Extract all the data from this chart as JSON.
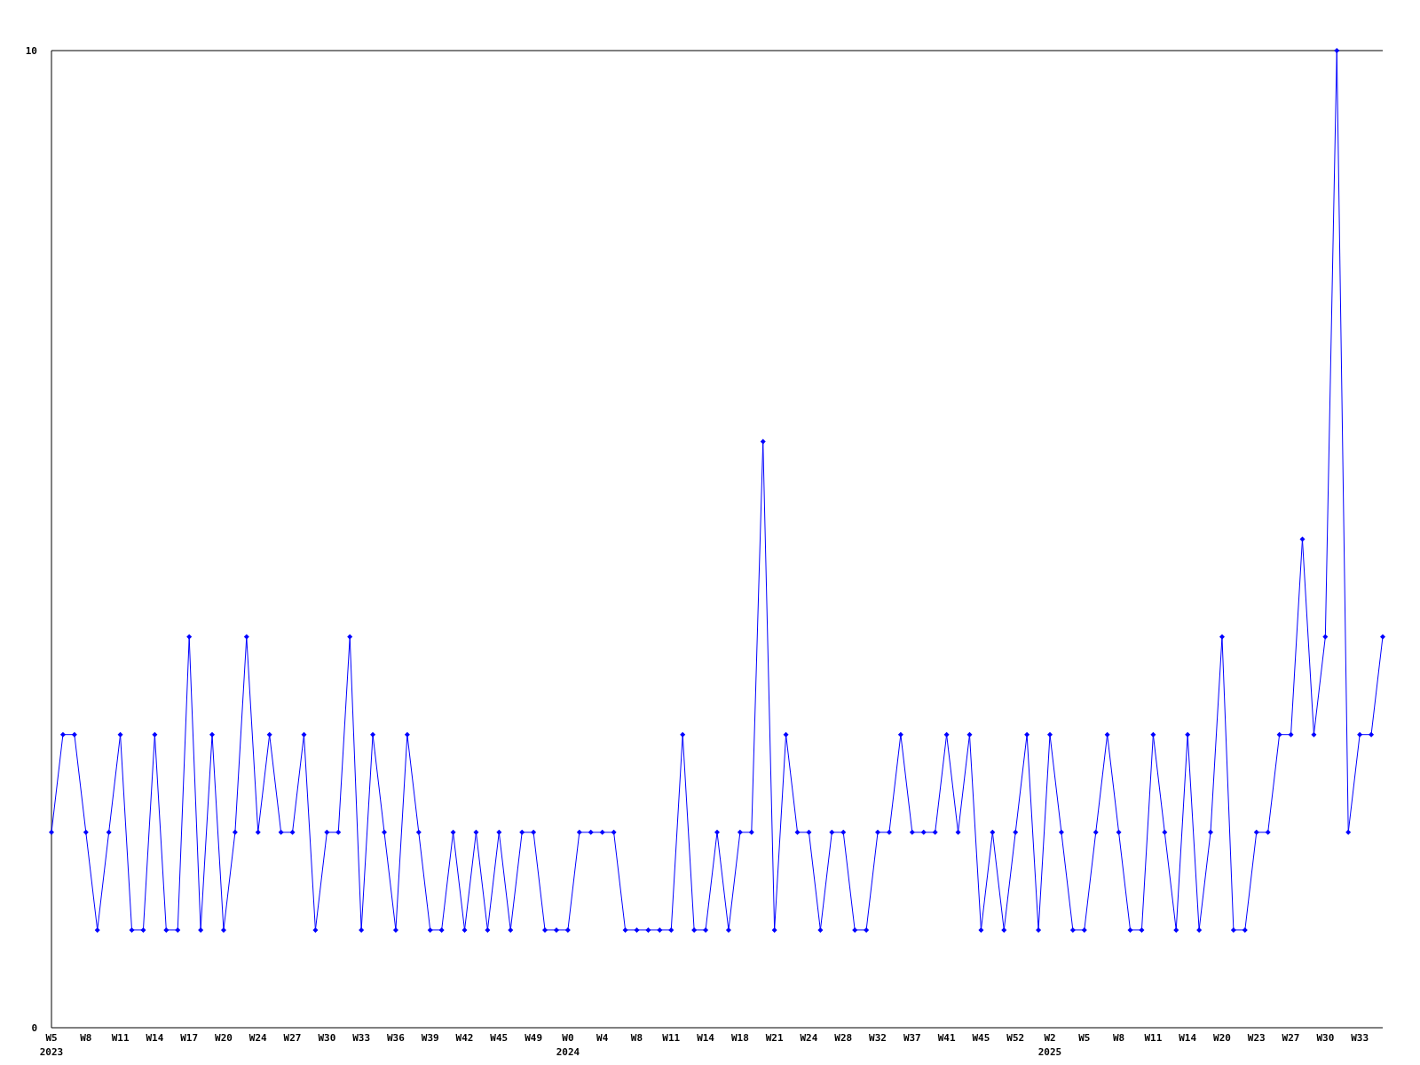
{
  "chart_data": {
    "type": "line",
    "categories": [
      "W5\n2023",
      null,
      null,
      "W8",
      null,
      null,
      "W11",
      null,
      null,
      "W14",
      null,
      null,
      "W17",
      null,
      null,
      "W20",
      null,
      null,
      "W24",
      null,
      null,
      "W27",
      null,
      null,
      "W30",
      null,
      null,
      "W33",
      null,
      null,
      "W36",
      null,
      null,
      "W39",
      null,
      null,
      "W42",
      null,
      null,
      "W45",
      null,
      null,
      "W49",
      null,
      null,
      "W0\n2024",
      null,
      null,
      "W4",
      null,
      null,
      "W8",
      null,
      null,
      "W11",
      null,
      null,
      "W14",
      null,
      null,
      "W18",
      null,
      null,
      "W21",
      null,
      null,
      "W24",
      null,
      null,
      "W28",
      null,
      null,
      "W32",
      null,
      null,
      "W37",
      null,
      null,
      "W41",
      null,
      null,
      "W45",
      null,
      null,
      "W52",
      null,
      null,
      "W2\n2025",
      null,
      null,
      "W5",
      null,
      null,
      "W8",
      null,
      null,
      "W11",
      null,
      null,
      "W14",
      null,
      null,
      "W20",
      null,
      null,
      "W23",
      null,
      null,
      "W27",
      null,
      null,
      "W30",
      null,
      null,
      "W33",
      null,
      null
    ],
    "series": [
      {
        "color": "#0000ff",
        "values": [
          2,
          3,
          3,
          2,
          1,
          2,
          3,
          1,
          1,
          3,
          1,
          1,
          4,
          1,
          3,
          1,
          2,
          4,
          2,
          3,
          2,
          2,
          3,
          1,
          2,
          2,
          4,
          1,
          3,
          2,
          1,
          3,
          2,
          1,
          1,
          2,
          1,
          2,
          1,
          2,
          1,
          2,
          2,
          1,
          1,
          1,
          2,
          2,
          2,
          2,
          1,
          1,
          1,
          1,
          1,
          3,
          1,
          1,
          2,
          1,
          2,
          2,
          6,
          1,
          3,
          2,
          2,
          1,
          2,
          2,
          1,
          1,
          2,
          2,
          3,
          2,
          2,
          2,
          3,
          2,
          3,
          1,
          2,
          1,
          2,
          3,
          1,
          3,
          2,
          1,
          1,
          2,
          3,
          2,
          1,
          1,
          3,
          2,
          1,
          3,
          1,
          2,
          4,
          1,
          1,
          2,
          2,
          3,
          3,
          5,
          3,
          4,
          10,
          2,
          3,
          3,
          4
        ]
      }
    ],
    "ylim": [
      0,
      10
    ],
    "yticks": [
      0,
      10
    ],
    "grid": false,
    "marker": "diamond",
    "line_style": "solid"
  }
}
